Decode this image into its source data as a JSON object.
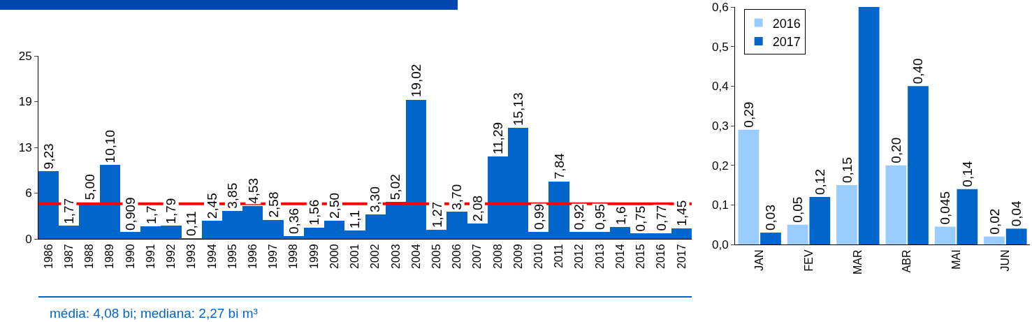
{
  "chart_data": [
    {
      "type": "bar",
      "categories": [
        "1986",
        "1987",
        "1988",
        "1989",
        "1990",
        "1991",
        "1992",
        "1993",
        "1994",
        "1995",
        "1996",
        "1997",
        "1998",
        "1999",
        "2000",
        "2001",
        "2002",
        "2003",
        "2004",
        "2005",
        "2006",
        "2007",
        "2008",
        "2009",
        "2010",
        "2011",
        "2012",
        "2013",
        "2014",
        "2015",
        "2016",
        "2017"
      ],
      "values": [
        9.23,
        1.77,
        5.0,
        10.1,
        0.909,
        1.7,
        1.79,
        0.11,
        2.45,
        3.85,
        4.53,
        2.58,
        0.36,
        1.56,
        2.5,
        1.1,
        3.3,
        5.02,
        19.02,
        1.27,
        3.7,
        2.08,
        11.29,
        15.13,
        0.99,
        7.84,
        0.92,
        0.95,
        1.6,
        0.75,
        0.77,
        1.45
      ],
      "value_labels": [
        "9,23",
        "1,77",
        "5,00",
        "10,10",
        "0,909",
        "1,7",
        "1,79",
        "0,11",
        "2,45",
        "3,85",
        "4,53",
        "2,58",
        "0,36",
        "1,56",
        "2,50",
        "1,1",
        "3,30",
        "5,02",
        "19,02",
        "1,27",
        "3,70",
        "2,08",
        "11,29",
        "15,13",
        "0,99",
        "7,84",
        "0,92",
        "0,95",
        "1,6",
        "0,75",
        "0,77",
        "1,45"
      ],
      "color": "#0066cc",
      "ylim": [
        0,
        25
      ],
      "yticks": [
        0,
        {
          "value": 6.25,
          "label": "6"
        },
        {
          "value": 12.5,
          "label": "13"
        },
        {
          "value": 18.75,
          "label": "19"
        },
        25
      ],
      "ref_lines": [
        {
          "axis": "y",
          "value": 4.8,
          "color": "#ff0000"
        }
      ],
      "annotations": [
        "média: 4,08 bi; mediana: 2,27 bi m³"
      ]
    },
    {
      "type": "bar",
      "categories": [
        "JAN",
        "FEV",
        "MAR",
        "ABR",
        "MAI",
        "JUN"
      ],
      "series": [
        {
          "name": "2016",
          "color": "#99ccff",
          "values": [
            0.29,
            0.05,
            0.15,
            0.2,
            0.045,
            0.02
          ],
          "value_labels": [
            "0,29",
            "0,05",
            "0,15",
            "0,20",
            "0,045",
            "0,02"
          ]
        },
        {
          "name": "2017",
          "color": "#0066cc",
          "values": [
            0.03,
            0.12,
            0.6,
            0.4,
            0.14,
            0.04
          ],
          "value_labels": [
            "0,03",
            "0,12",
            null,
            "0,40",
            "0,14",
            "0,04"
          ]
        }
      ],
      "ylim": [
        0,
        0.6
      ],
      "yticks": [
        {
          "value": 0,
          "label": "0,0"
        },
        {
          "value": 0.1,
          "label": "0,1"
        },
        {
          "value": 0.2,
          "label": "0,2"
        },
        {
          "value": 0.3,
          "label": "0,3"
        },
        {
          "value": 0.4,
          "label": "0,4"
        },
        {
          "value": 0.5,
          "label": "0,5"
        },
        {
          "value": 0.6,
          "label": "0,6"
        }
      ],
      "legend": "top left"
    }
  ]
}
